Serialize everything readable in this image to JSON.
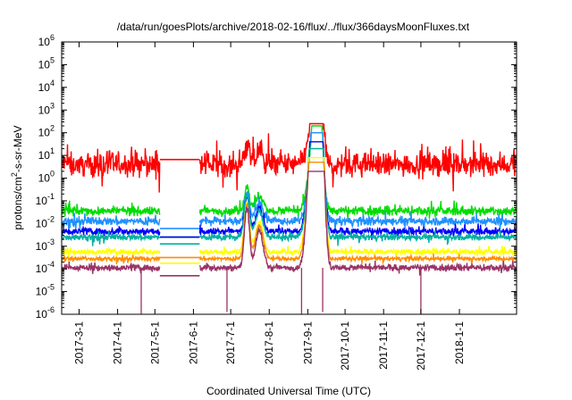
{
  "chart_data": {
    "type": "line",
    "title": "/data/run/goesPlots/archive/2018-02-16/flux/../flux/366daysMoonFluxes.txt",
    "xlabel": "Coordinated Universal Time (UTC)",
    "ylabel_parts": {
      "pre": "protons/cm",
      "sup": "2",
      "post": "-s-sr-MeV"
    },
    "yscale": "log",
    "ylim_exp": [
      -6,
      6
    ],
    "y_ticks": [
      {
        "base": "10",
        "exp": "-6"
      },
      {
        "base": "10",
        "exp": "-5"
      },
      {
        "base": "10",
        "exp": "-4"
      },
      {
        "base": "10",
        "exp": "-3"
      },
      {
        "base": "10",
        "exp": "-2"
      },
      {
        "base": "10",
        "exp": "-1"
      },
      {
        "base": "10",
        "exp": "0"
      },
      {
        "base": "10",
        "exp": "1"
      },
      {
        "base": "10",
        "exp": "2"
      },
      {
        "base": "10",
        "exp": "3"
      },
      {
        "base": "10",
        "exp": "4"
      },
      {
        "base": "10",
        "exp": "5"
      },
      {
        "base": "10",
        "exp": "6"
      }
    ],
    "xlim": [
      "2017-02-15",
      "2018-02-16"
    ],
    "x_ticks": [
      "2017-3-1",
      "2017-4-1",
      "2017-5-1",
      "2017-6-1",
      "2017-7-1",
      "2017-8-1",
      "2017-9-1",
      "2017-10-1",
      "2017-11-1",
      "2017-12-1",
      "2018-1-1"
    ],
    "grid": false,
    "data_gap": [
      "2017-05-05",
      "2017-06-06"
    ],
    "events": [
      {
        "date": "2017-07-14",
        "y_mult": 6,
        "width_days": 2
      },
      {
        "date": "2017-07-24",
        "y_mult": 3,
        "width_days": 3
      },
      {
        "date": "2017-09-06",
        "y_mult": 300,
        "width_days": 4
      },
      {
        "date": "2017-09-10",
        "y_mult": 800,
        "width_days": 3
      }
    ],
    "series": [
      {
        "color": "#ff0000",
        "base_log": 0.6,
        "noise": 0.45,
        "min_log": -1.2,
        "max_log": 2.4,
        "gap_value_log": 0.82
      },
      {
        "color": "#00dd00",
        "base_log": -1.45,
        "noise": 0.17,
        "min_log": -2.3,
        "max_log": 2.3,
        "gap_value_log": -2.6
      },
      {
        "color": "#1e90ff",
        "base_log": -1.9,
        "noise": 0.16,
        "min_log": -2.6,
        "max_log": 2.0,
        "gap_value_log": -2.22
      },
      {
        "color": "#0000ff",
        "base_log": -2.35,
        "noise": 0.13,
        "min_log": -2.9,
        "max_log": 1.6,
        "gap_value_log": -2.6
      },
      {
        "color": "#00b0a0",
        "base_log": -2.6,
        "noise": 0.12,
        "min_log": -3.1,
        "max_log": 1.3,
        "gap_value_log": -2.9
      },
      {
        "color": "#ffff00",
        "base_log": -3.25,
        "noise": 0.1,
        "min_log": -3.6,
        "max_log": 0.9,
        "gap_value_log": -3.75
      },
      {
        "color": "#ff8c00",
        "base_log": -3.55,
        "noise": 0.08,
        "min_log": -3.8,
        "max_log": 0.7,
        "gap_value_log": -3.5
      },
      {
        "color": "#993366",
        "base_log": -3.95,
        "noise": 0.12,
        "min_log": -4.4,
        "max_log": 0.3,
        "gap_value_log": -4.3
      }
    ]
  }
}
